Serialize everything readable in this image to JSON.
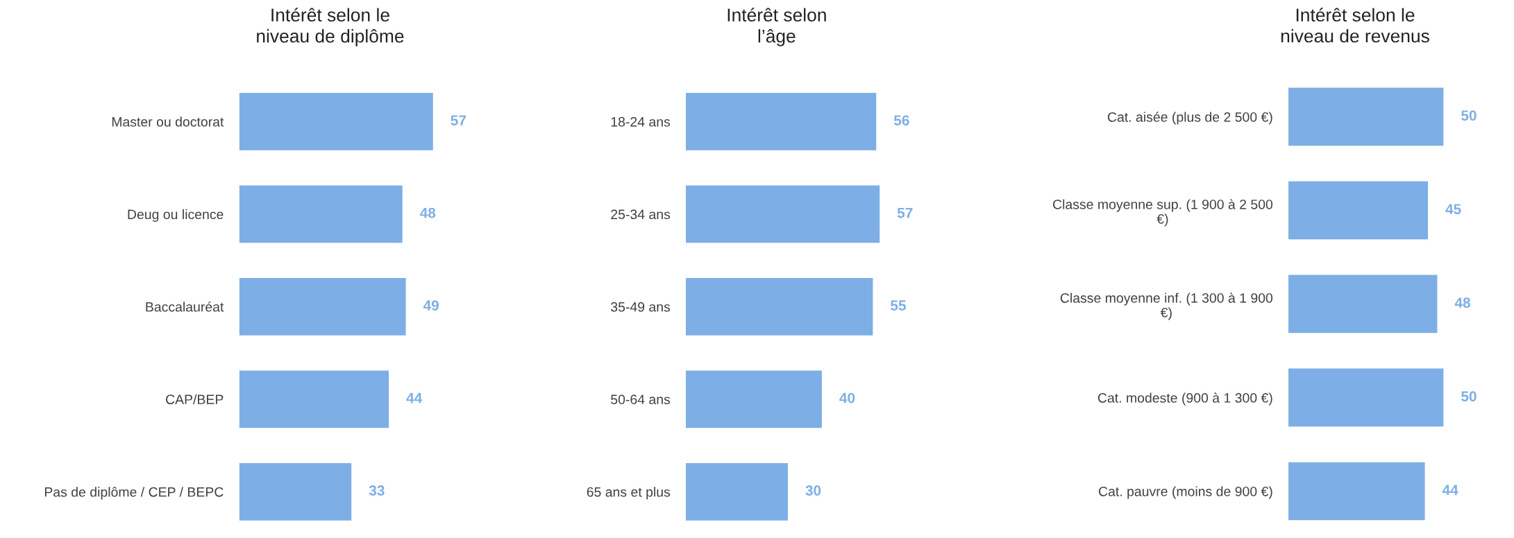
{
  "chart_data": [
    {
      "type": "bar",
      "orientation": "horizontal",
      "title": "Intérêt selon le\nniveau de diplôme",
      "categories": [
        "Master ou doctorat",
        "Deug ou licence",
        "Baccalauréat",
        "CAP/BEP",
        "Pas de diplôme / CEP / BEPC"
      ],
      "values": [
        57,
        48,
        49,
        44,
        33
      ],
      "color": "#7daee6",
      "data_labels": true,
      "grid": false,
      "legend": false
    },
    {
      "type": "bar",
      "orientation": "horizontal",
      "title": "Intérêt selon\nl’âge",
      "categories": [
        "18-24 ans",
        "25-34 ans",
        "35-49 ans",
        "50-64 ans",
        "65 ans et plus"
      ],
      "values": [
        56,
        57,
        55,
        40,
        30
      ],
      "color": "#7daee6",
      "data_labels": true,
      "grid": false,
      "legend": false
    },
    {
      "type": "bar",
      "orientation": "horizontal",
      "title": "Intérêt selon le\nniveau de revenus",
      "categories": [
        "Cat. aisée (plus de 2 500 €)",
        "Classe moyenne sup. (1 900 à 2 500\n€)",
        "Classe moyenne inf. (1 300 à 1 900\n€)",
        "Cat. modeste (900 à 1 300 €)",
        "Cat. pauvre (moins de 900 €)"
      ],
      "values": [
        50,
        45,
        48,
        50,
        44
      ],
      "color": "#7daee6",
      "data_labels": true,
      "grid": false,
      "legend": false
    }
  ]
}
